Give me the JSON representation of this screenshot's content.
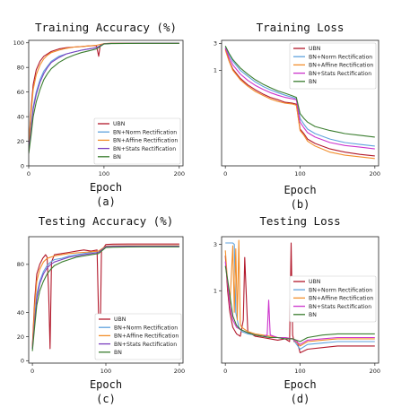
{
  "chart_data": [
    {
      "id": "a",
      "type": "line",
      "title": "Training Accuracy (%)",
      "xlabel": "Epoch",
      "sublabel": "(a)",
      "ylabel": "",
      "xlim": [
        0,
        205
      ],
      "ylim": [
        0,
        102
      ],
      "xticks": [
        "0",
        "100",
        "200"
      ],
      "xtick_values": [
        0,
        100,
        200
      ],
      "yticks": [
        "0",
        "20",
        "40",
        "60",
        "80",
        "100"
      ],
      "ytick_values": [
        0,
        20,
        40,
        60,
        80,
        100
      ],
      "legend": "lower-right",
      "series": [
        {
          "name": "UBN",
          "color": "#b2182b",
          "x": [
            0,
            3,
            6,
            10,
            15,
            20,
            25,
            30,
            40,
            50,
            60,
            70,
            80,
            90,
            93,
            95,
            100,
            110,
            130,
            150,
            200
          ],
          "y": [
            15,
            45,
            66,
            78,
            85,
            89,
            91,
            93,
            95,
            96,
            96.5,
            97,
            97.5,
            97.8,
            89,
            98,
            99.3,
            99.6,
            99.7,
            99.8,
            99.8
          ]
        },
        {
          "name": "BN+Norm Rectification",
          "color": "#5fa2dd",
          "x": [
            0,
            3,
            6,
            10,
            15,
            20,
            25,
            30,
            40,
            50,
            60,
            70,
            80,
            90,
            100,
            110,
            130,
            150,
            200
          ],
          "y": [
            12,
            30,
            48,
            60,
            70,
            77,
            81,
            85,
            89,
            91,
            92.5,
            94,
            95,
            96,
            99.2,
            99.5,
            99.6,
            99.7,
            99.7
          ]
        },
        {
          "name": "BN+Affine Rectification",
          "color": "#f28e2b",
          "x": [
            0,
            3,
            6,
            10,
            15,
            20,
            25,
            30,
            40,
            50,
            60,
            70,
            80,
            90,
            100,
            110,
            130,
            150,
            200
          ],
          "y": [
            14,
            42,
            62,
            74,
            82,
            87,
            90,
            92,
            94,
            95.5,
            96.5,
            97,
            97.5,
            98,
            99.4,
            99.6,
            99.7,
            99.7,
            99.7
          ]
        },
        {
          "name": "BN+Stats Rectification",
          "color": "#7b3fbf",
          "x": [
            0,
            3,
            6,
            10,
            15,
            20,
            25,
            30,
            40,
            50,
            60,
            70,
            80,
            90,
            100,
            110,
            130,
            150,
            200
          ],
          "y": [
            13,
            28,
            46,
            58,
            68,
            75,
            80,
            84,
            88,
            91,
            92.5,
            94,
            95,
            96,
            99.2,
            99.5,
            99.6,
            99.7,
            99.7
          ]
        },
        {
          "name": "BN",
          "color": "#3a7d2e",
          "x": [
            0,
            3,
            6,
            10,
            15,
            20,
            25,
            30,
            40,
            50,
            60,
            70,
            80,
            90,
            100,
            110,
            130,
            150,
            200
          ],
          "y": [
            10,
            24,
            40,
            52,
            62,
            70,
            75,
            79,
            84,
            87.5,
            90,
            92,
            93.5,
            95,
            99,
            99.4,
            99.5,
            99.6,
            99.6
          ]
        }
      ]
    },
    {
      "id": "b",
      "type": "line",
      "title": "Training Loss",
      "xlabel": "Epoch",
      "sublabel": "(b)",
      "ylabel": "",
      "xlim": [
        -5,
        205
      ],
      "ylim": [
        0.02,
        3.4
      ],
      "yscale": "log",
      "xticks": [
        "0",
        "100",
        "200"
      ],
      "xtick_values": [
        0,
        100,
        200
      ],
      "yticks": [
        "1",
        "3"
      ],
      "ytick_values": [
        1,
        3
      ],
      "legend": "top-right",
      "series": [
        {
          "name": "UBN",
          "color": "#b2182b",
          "x": [
            0,
            5,
            10,
            20,
            30,
            40,
            50,
            60,
            70,
            80,
            90,
            95,
            100,
            105,
            110,
            120,
            140,
            160,
            180,
            200
          ],
          "y": [
            2.4,
            1.5,
            1.05,
            0.72,
            0.55,
            0.45,
            0.38,
            0.33,
            0.3,
            0.27,
            0.26,
            0.25,
            0.09,
            0.075,
            0.06,
            0.05,
            0.04,
            0.035,
            0.032,
            0.03
          ]
        },
        {
          "name": "BN+Norm Rectification",
          "color": "#5fa2dd",
          "x": [
            0,
            5,
            10,
            20,
            30,
            40,
            50,
            60,
            70,
            80,
            90,
            95,
            100,
            105,
            110,
            120,
            140,
            160,
            180,
            200
          ],
          "y": [
            2.6,
            1.9,
            1.45,
            1.0,
            0.78,
            0.62,
            0.52,
            0.45,
            0.4,
            0.36,
            0.33,
            0.31,
            0.14,
            0.11,
            0.09,
            0.075,
            0.06,
            0.052,
            0.048,
            0.045
          ]
        },
        {
          "name": "BN+Affine Rectification",
          "color": "#f28e2b",
          "x": [
            0,
            5,
            10,
            20,
            30,
            40,
            50,
            60,
            70,
            80,
            90,
            95,
            100,
            105,
            110,
            120,
            140,
            160,
            180,
            200
          ],
          "y": [
            2.3,
            1.45,
            1.0,
            0.68,
            0.52,
            0.42,
            0.36,
            0.31,
            0.28,
            0.26,
            0.25,
            0.24,
            0.085,
            0.07,
            0.055,
            0.045,
            0.035,
            0.031,
            0.029,
            0.027
          ]
        },
        {
          "name": "BN+Stats Rectification",
          "color": "#cc33cc",
          "x": [
            0,
            5,
            10,
            20,
            30,
            40,
            50,
            60,
            70,
            80,
            90,
            95,
            100,
            105,
            110,
            120,
            140,
            160,
            180,
            200
          ],
          "y": [
            2.5,
            1.7,
            1.25,
            0.86,
            0.66,
            0.54,
            0.46,
            0.4,
            0.36,
            0.33,
            0.31,
            0.3,
            0.12,
            0.095,
            0.078,
            0.065,
            0.052,
            0.046,
            0.043,
            0.04
          ]
        },
        {
          "name": "BN",
          "color": "#3a7d2e",
          "x": [
            0,
            5,
            10,
            20,
            30,
            40,
            50,
            60,
            70,
            80,
            90,
            95,
            100,
            105,
            110,
            120,
            140,
            160,
            180,
            200
          ],
          "y": [
            2.7,
            2.0,
            1.55,
            1.1,
            0.85,
            0.68,
            0.57,
            0.49,
            0.43,
            0.39,
            0.35,
            0.33,
            0.17,
            0.14,
            0.12,
            0.1,
            0.085,
            0.075,
            0.07,
            0.065
          ]
        }
      ]
    },
    {
      "id": "c",
      "type": "line",
      "title": "Testing Accuracy (%)",
      "xlabel": "Epoch",
      "sublabel": "(c)",
      "ylabel": "",
      "xlim": [
        -5,
        205
      ],
      "ylim": [
        -2,
        103
      ],
      "xticks": [
        "0",
        "100",
        "200"
      ],
      "xtick_values": [
        0,
        100,
        200
      ],
      "yticks": [
        "0",
        "20",
        "40",
        "80"
      ],
      "ytick_values": [
        0,
        20,
        40,
        80
      ],
      "legend": "lower-right",
      "series": [
        {
          "name": "UBN",
          "color": "#b2182b",
          "x": [
            0,
            3,
            6,
            10,
            14,
            18,
            20,
            22,
            24,
            26,
            30,
            40,
            50,
            60,
            70,
            80,
            88,
            90,
            92,
            94,
            96,
            100,
            110,
            130,
            150,
            200
          ],
          "y": [
            12,
            50,
            72,
            80,
            85,
            88,
            86,
            60,
            10,
            82,
            88,
            89,
            90,
            91,
            92,
            91,
            92,
            40,
            5,
            91,
            93,
            96.5,
            96.8,
            96.9,
            96.9,
            96.9
          ]
        },
        {
          "name": "BN+Norm Rectification",
          "color": "#5fa2dd",
          "x": [
            0,
            3,
            6,
            10,
            15,
            20,
            25,
            30,
            40,
            50,
            60,
            70,
            80,
            90,
            100,
            110,
            130,
            150,
            200
          ],
          "y": [
            10,
            35,
            55,
            66,
            74,
            79,
            82,
            84,
            85,
            87,
            88,
            89,
            90,
            91,
            94.5,
            94.8,
            94.9,
            95,
            95
          ]
        },
        {
          "name": "BN+Affine Rectification",
          "color": "#f28e2b",
          "x": [
            0,
            3,
            6,
            10,
            15,
            20,
            25,
            30,
            40,
            50,
            60,
            70,
            80,
            90,
            100,
            110,
            130,
            150,
            200
          ],
          "y": [
            11,
            45,
            66,
            76,
            82,
            85,
            86,
            87,
            88,
            89,
            89.5,
            90,
            90.5,
            91,
            95.2,
            95.4,
            95.5,
            95.5,
            95.5
          ]
        },
        {
          "name": "BN+Stats Rectification",
          "color": "#7b3fbf",
          "x": [
            0,
            3,
            6,
            10,
            15,
            20,
            25,
            30,
            40,
            50,
            60,
            70,
            80,
            90,
            100,
            110,
            130,
            150,
            200
          ],
          "y": [
            10,
            32,
            52,
            64,
            72,
            77,
            80,
            82,
            84,
            86,
            87,
            88,
            89,
            90,
            94.8,
            95,
            95.1,
            95.2,
            95.2
          ]
        },
        {
          "name": "BN",
          "color": "#3a7d2e",
          "x": [
            0,
            3,
            6,
            10,
            15,
            20,
            25,
            30,
            40,
            50,
            60,
            70,
            80,
            90,
            100,
            110,
            130,
            150,
            200
          ],
          "y": [
            8,
            28,
            46,
            58,
            66,
            72,
            76,
            79,
            82,
            84,
            86,
            87,
            88,
            89,
            94,
            94.3,
            94.5,
            94.6,
            94.6
          ]
        }
      ]
    },
    {
      "id": "d",
      "type": "line",
      "title": "Testing Loss",
      "xlabel": "Epoch",
      "sublabel": "(d)",
      "ylabel": "",
      "xlim": [
        -5,
        205
      ],
      "ylim": [
        0.18,
        3.6
      ],
      "yscale": "log",
      "xticks": [
        "0",
        "100",
        "200"
      ],
      "xtick_values": [
        0,
        100,
        200
      ],
      "yticks": [
        "1",
        "3"
      ],
      "ytick_values": [
        1,
        3
      ],
      "legend": "center-right",
      "series": [
        {
          "name": "UBN",
          "color": "#b2182b",
          "x": [
            0,
            3,
            6,
            10,
            15,
            20,
            24,
            26,
            30,
            40,
            50,
            60,
            70,
            80,
            86,
            88,
            90,
            92,
            96,
            100,
            110,
            130,
            150,
            200
          ],
          "y": [
            2.3,
            1.0,
            0.6,
            0.42,
            0.36,
            0.34,
            0.5,
            2.2,
            0.38,
            0.34,
            0.33,
            0.32,
            0.31,
            0.32,
            0.3,
            3.1,
            0.35,
            0.3,
            0.3,
            0.23,
            0.25,
            0.26,
            0.27,
            0.27
          ]
        },
        {
          "name": "BN+Norm Rectification",
          "color": "#5fa2dd",
          "x": [
            0,
            3,
            6,
            10,
            12,
            14,
            18,
            22,
            30,
            40,
            50,
            60,
            70,
            80,
            90,
            100,
            110,
            130,
            150,
            200
          ],
          "y": [
            3.1,
            3.1,
            3.1,
            3.1,
            3.0,
            0.6,
            0.42,
            0.38,
            0.36,
            0.35,
            0.34,
            0.33,
            0.33,
            0.32,
            0.32,
            0.25,
            0.28,
            0.29,
            0.3,
            0.3
          ]
        },
        {
          "name": "BN+Affine Rectification",
          "color": "#f28e2b",
          "x": [
            0,
            3,
            6,
            10,
            12,
            14,
            16,
            18,
            20,
            22,
            26,
            30,
            40,
            50,
            60,
            70,
            80,
            90,
            100,
            110,
            130,
            150,
            200
          ],
          "y": [
            2.6,
            1.2,
            0.7,
            2.9,
            0.6,
            2.7,
            0.5,
            3.3,
            0.45,
            0.42,
            0.4,
            0.38,
            0.36,
            0.35,
            0.34,
            0.33,
            0.33,
            0.32,
            0.27,
            0.3,
            0.31,
            0.32,
            0.32
          ]
        },
        {
          "name": "BN+Stats Rectification",
          "color": "#cc33cc",
          "x": [
            0,
            3,
            6,
            10,
            15,
            20,
            30,
            40,
            50,
            56,
            58,
            60,
            70,
            80,
            90,
            100,
            110,
            130,
            150,
            200
          ],
          "y": [
            2.0,
            1.2,
            0.7,
            0.5,
            0.42,
            0.4,
            0.37,
            0.35,
            0.34,
            0.35,
            0.8,
            0.35,
            0.33,
            0.33,
            0.32,
            0.28,
            0.31,
            0.32,
            0.33,
            0.33
          ]
        },
        {
          "name": "BN",
          "color": "#3a7d2e",
          "x": [
            0,
            3,
            6,
            10,
            15,
            20,
            30,
            40,
            50,
            60,
            70,
            80,
            90,
            100,
            110,
            130,
            150,
            200
          ],
          "y": [
            1.8,
            1.3,
            0.9,
            0.55,
            0.44,
            0.4,
            0.37,
            0.35,
            0.34,
            0.33,
            0.33,
            0.32,
            0.32,
            0.3,
            0.33,
            0.35,
            0.36,
            0.36
          ]
        }
      ]
    }
  ]
}
